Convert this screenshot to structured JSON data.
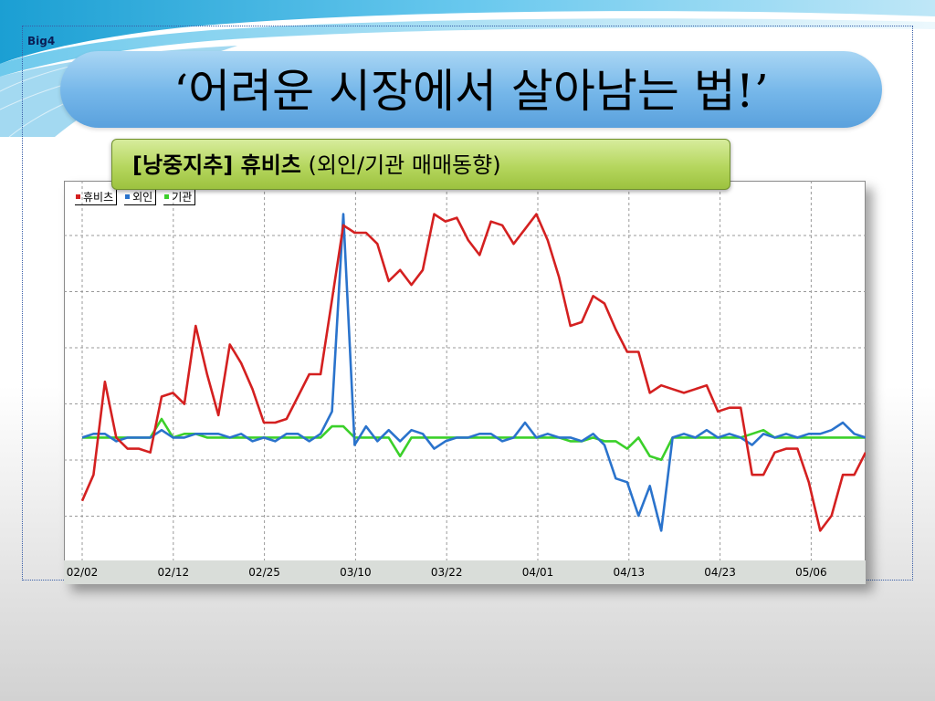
{
  "header": {
    "brand": "Big4",
    "title": "‘어려운 시장에서 살아남는 법!’"
  },
  "subtitle": {
    "bold": "[낭중지추] 휴비츠",
    "normal": " (외인/기관 매매동향)"
  },
  "colors": {
    "price": "#d42020",
    "foreign": "#2a73cc",
    "institution": "#3bd02a",
    "title_bar": "#74b6e9",
    "subtitle_bar": "#b5d65e"
  },
  "chart_data": {
    "type": "line",
    "title": "",
    "xlabel": "",
    "ylabel": "",
    "ylim": [
      0,
      100
    ],
    "x_ticks": [
      "02/02",
      "02/12",
      "02/25",
      "03/10",
      "03/22",
      "04/01",
      "04/13",
      "04/23",
      "05/06"
    ],
    "grid": true,
    "legend_position": "top-left",
    "series": [
      {
        "name": "휴비츠",
        "color": "#d42020",
        "values": [
          16,
          23,
          48,
          33,
          30,
          30,
          29,
          44,
          45,
          42,
          63,
          50,
          39,
          58,
          53,
          46,
          37,
          37,
          38,
          44,
          50,
          50,
          70,
          90,
          88,
          88,
          85,
          75,
          78,
          74,
          78,
          93,
          91,
          92,
          86,
          82,
          91,
          90,
          85,
          89,
          93,
          86,
          76,
          63,
          64,
          71,
          69,
          62,
          56,
          56,
          45,
          47,
          46,
          45,
          46,
          47,
          40,
          41,
          41,
          23,
          23,
          29,
          30,
          30,
          21,
          8,
          12,
          23,
          23,
          29
        ]
      },
      {
        "name": "외인",
        "color": "#2a73cc",
        "values": [
          33,
          34,
          34,
          32,
          33,
          33,
          33,
          35,
          33,
          33,
          34,
          34,
          34,
          33,
          34,
          32,
          33,
          32,
          34,
          34,
          32,
          34,
          40,
          93,
          31,
          36,
          32,
          35,
          32,
          35,
          34,
          30,
          32,
          33,
          33,
          34,
          34,
          32,
          33,
          37,
          33,
          34,
          33,
          33,
          32,
          34,
          31,
          22,
          21,
          12,
          20,
          8,
          33,
          34,
          33,
          35,
          33,
          34,
          33,
          31,
          34,
          33,
          34,
          33,
          34,
          34,
          35,
          37,
          34,
          33
        ]
      },
      {
        "name": "기관",
        "color": "#3bd02a",
        "values": [
          33,
          33,
          33,
          33,
          33,
          33,
          33,
          38,
          33,
          34,
          34,
          33,
          33,
          33,
          33,
          33,
          33,
          33,
          33,
          33,
          33,
          33,
          36,
          36,
          33,
          33,
          33,
          33,
          28,
          33,
          33,
          33,
          33,
          33,
          33,
          33,
          33,
          33,
          33,
          33,
          33,
          33,
          33,
          32,
          32,
          33,
          32,
          32,
          30,
          33,
          28,
          27,
          33,
          33,
          33,
          33,
          33,
          33,
          33,
          34,
          35,
          33,
          33,
          33,
          33,
          33,
          33,
          33,
          33,
          33
        ]
      }
    ]
  }
}
